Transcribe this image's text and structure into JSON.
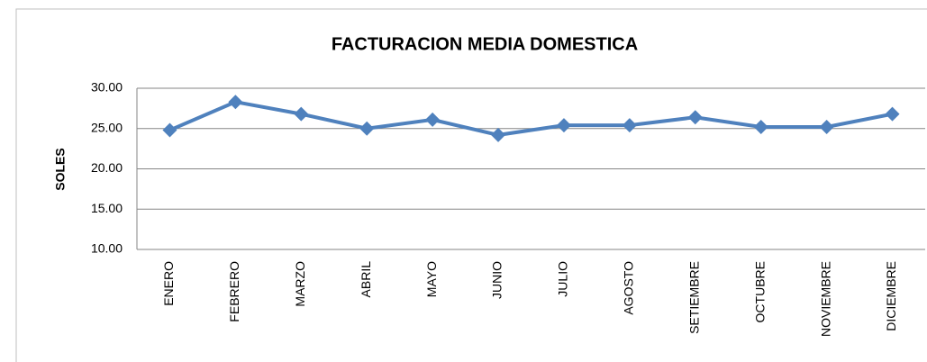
{
  "chart_data": {
    "type": "line",
    "title": "FACTURACION MEDIA DOMESTICA",
    "y_label": "SOLES",
    "categories": [
      "ENERO",
      "FEBRERO",
      "MARZO",
      "ABRIL",
      "MAYO",
      "JUNIO",
      "JULIO",
      "AGOSTO",
      "SETIEMBRE",
      "OCTUBRE",
      "NOVIEMBRE",
      "DICIEMBRE"
    ],
    "series": [
      {
        "name": "FACTURACION MEDIA DOMESTICA",
        "color": "#4f81bd",
        "values": [
          24.8,
          28.3,
          26.8,
          25.0,
          26.1,
          24.2,
          25.4,
          25.4,
          26.4,
          25.2,
          25.2,
          26.8
        ]
      }
    ],
    "ylim": [
      10,
      30
    ],
    "yticks": [
      {
        "value": 10,
        "label": "10.00"
      },
      {
        "value": 15,
        "label": "15.00"
      },
      {
        "value": 20,
        "label": "20.00"
      },
      {
        "value": 25,
        "label": "25.00"
      },
      {
        "value": 30,
        "label": "30.00"
      }
    ],
    "grid": true
  }
}
